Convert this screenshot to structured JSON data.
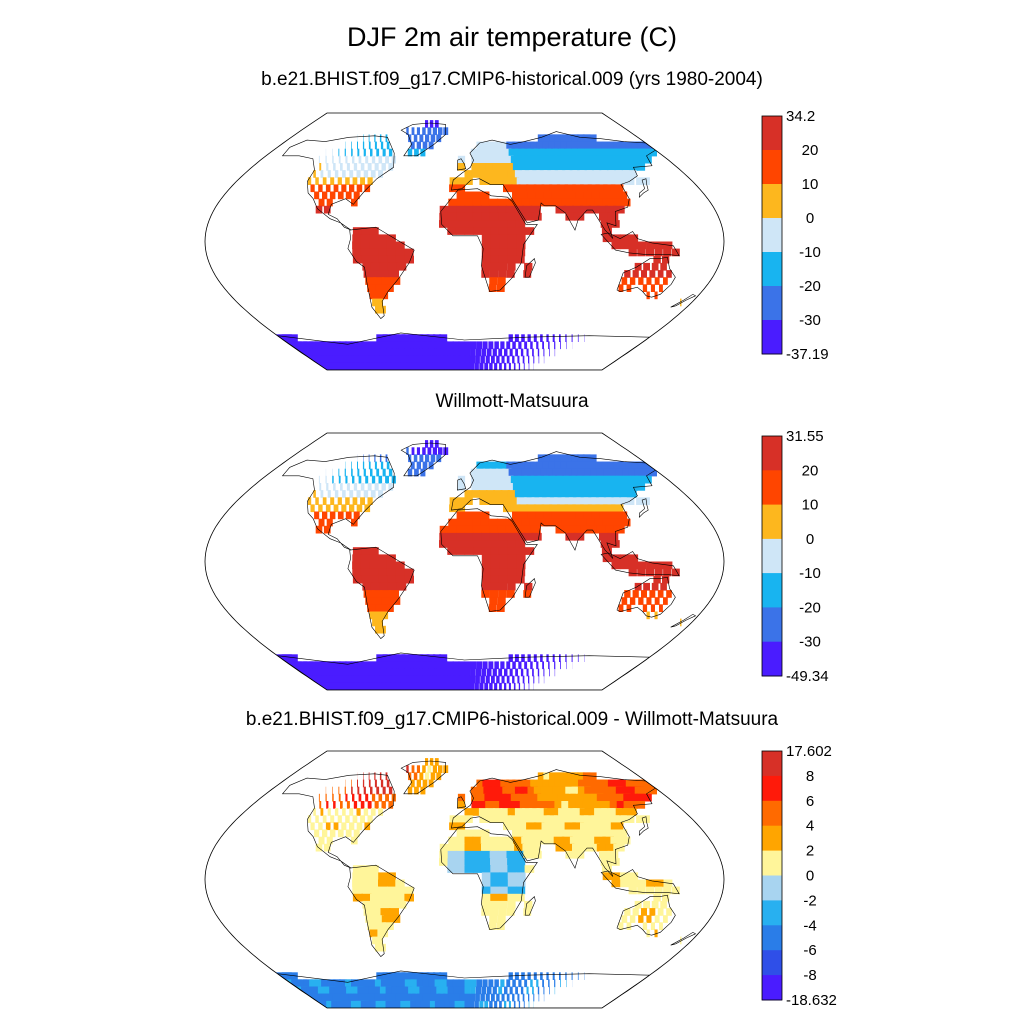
{
  "main_title": "DJF 2m air temperature (C)",
  "chart_data": [
    {
      "type": "heatmap",
      "title": "b.e21.BHIST.f09_g17.CMIP6-historical.009 (yrs 1980-2004)",
      "projection": "Robinson",
      "colorbar": {
        "labels": [
          "34.2",
          "20",
          "10",
          "0",
          "-10",
          "-20",
          "-30",
          "-37.19"
        ],
        "colors": [
          "#d73027",
          "#ff4500",
          "#fdb71e",
          "#cfe6f7",
          "#18b4f0",
          "#3b73e8",
          "#4a1cff"
        ]
      }
    },
    {
      "type": "heatmap",
      "title": "Willmott-Matsuura",
      "projection": "Robinson",
      "colorbar": {
        "labels": [
          "31.55",
          "20",
          "10",
          "0",
          "-10",
          "-20",
          "-30",
          "-49.34"
        ],
        "colors": [
          "#d73027",
          "#ff4500",
          "#fdb71e",
          "#cfe6f7",
          "#18b4f0",
          "#3b73e8",
          "#4a1cff"
        ]
      }
    },
    {
      "type": "heatmap",
      "title": "b.e21.BHIST.f09_g17.CMIP6-historical.009 - Willmott-Matsuura",
      "projection": "Robinson",
      "colorbar": {
        "labels": [
          "17.602",
          "8",
          "6",
          "4",
          "2",
          "0",
          "-2",
          "-4",
          "-6",
          "-8",
          "-18.632"
        ],
        "colors": [
          "#d73027",
          "#ff1a0a",
          "#ff6a00",
          "#ffa500",
          "#fff59a",
          "#a8d4f0",
          "#28b0f0",
          "#2a7de8",
          "#2f4fe8",
          "#4a1cff"
        ]
      }
    }
  ]
}
